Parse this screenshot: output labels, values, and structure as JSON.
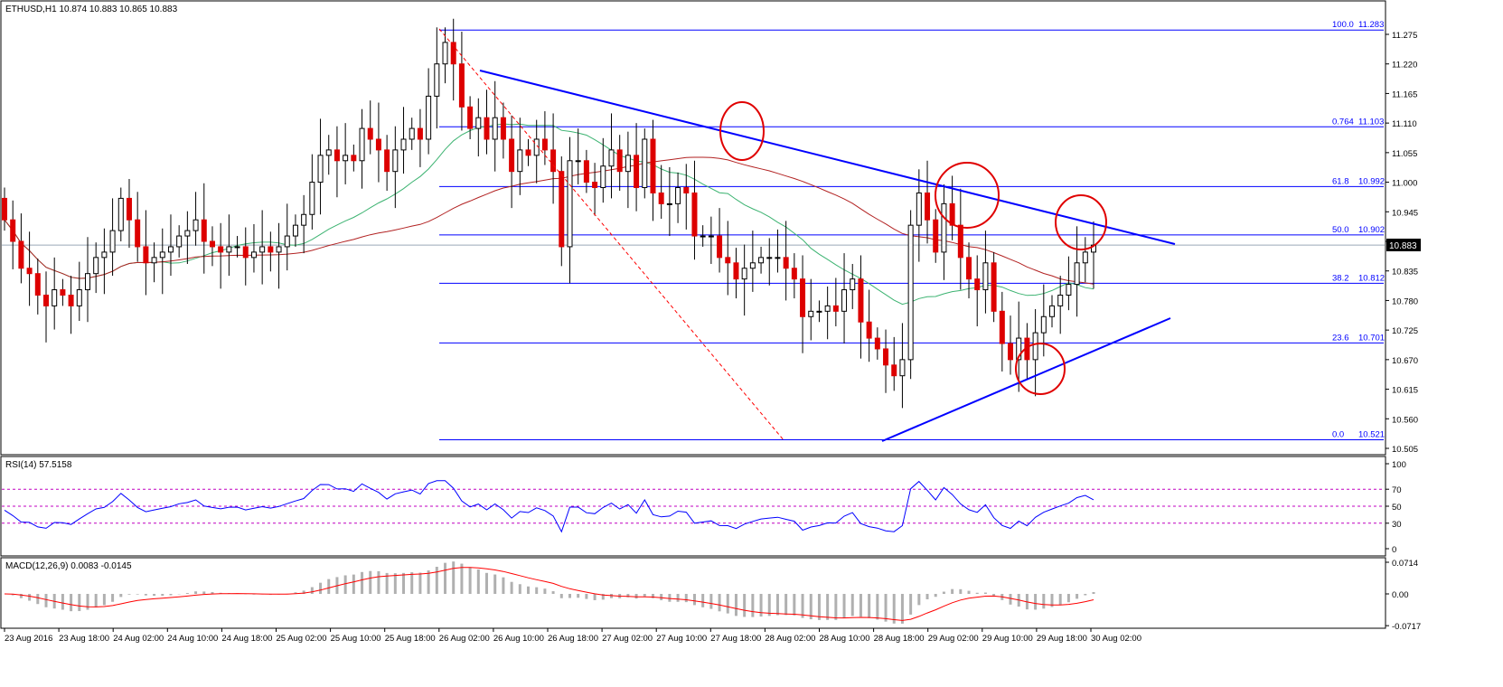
{
  "header": {
    "main_title": "ETHUSD,H1  10.874 10.883 10.865 10.883",
    "rsi_title": "RSI(14) 57.5158",
    "macd_title": "MACD(12,26,9) 0.0083 -0.0145",
    "current_price": "10.883"
  },
  "colors": {
    "bull": "#ffffff",
    "bear": "#dd0000",
    "wick": "#000000",
    "fib": "#0000ff",
    "trend": "#0000ff",
    "sma_green": "#3cb371",
    "sma_red": "#b22222",
    "diagonal": "#ff0000",
    "circle": "#e00000",
    "rsi_line": "#0000ff",
    "rsi_levels": "#c000c0",
    "macd_hist": "#b0b0b0",
    "macd_signal": "#ff0000"
  },
  "chart_data": [
    {
      "type": "candlestick",
      "title": "ETHUSD,H1",
      "ylim": [
        10.5,
        11.31
      ],
      "y_ticks": [
        "11.275",
        "11.220",
        "11.165",
        "11.110",
        "11.055",
        "11.000",
        "10.945",
        "10.890",
        "10.835",
        "10.780",
        "10.725",
        "10.670",
        "10.615",
        "10.560",
        "10.505"
      ],
      "x_labels": [
        "23 Aug 2016",
        "23 Aug 18:00",
        "24 Aug 02:00",
        "24 Aug 10:00",
        "24 Aug 18:00",
        "25 Aug 02:00",
        "25 Aug 10:00",
        "25 Aug 18:00",
        "26 Aug 02:00",
        "26 Aug 10:00",
        "26 Aug 18:00",
        "27 Aug 02:00",
        "27 Aug 10:00",
        "27 Aug 18:00",
        "28 Aug 02:00",
        "28 Aug 10:00",
        "28 Aug 18:00",
        "29 Aug 02:00",
        "29 Aug 10:00",
        "29 Aug 18:00",
        "30 Aug 02:00"
      ],
      "fib_levels": [
        {
          "label": "100.0",
          "value": 11.283,
          "text": "11.283"
        },
        {
          "label": "0.764",
          "value": 11.103,
          "text": "11.103"
        },
        {
          "label": "61.8",
          "value": 10.992,
          "text": "10.992"
        },
        {
          "label": "50.0",
          "value": 10.902,
          "text": "10.902"
        },
        {
          "label": "38.2",
          "value": 10.812,
          "text": "10.812"
        },
        {
          "label": "23.6",
          "value": 10.701,
          "text": "10.701"
        },
        {
          "label": "0.0",
          "value": 10.521,
          "text": "10.521"
        }
      ],
      "current_price": 10.883,
      "closes": [
        10.93,
        10.89,
        10.84,
        10.83,
        10.79,
        10.77,
        10.8,
        10.79,
        10.77,
        10.8,
        10.83,
        10.86,
        10.87,
        10.91,
        10.97,
        10.93,
        10.88,
        10.85,
        10.86,
        10.87,
        10.88,
        10.9,
        10.91,
        10.93,
        10.89,
        10.88,
        10.87,
        10.88,
        10.88,
        10.86,
        10.87,
        10.88,
        10.87,
        10.88,
        10.9,
        10.92,
        10.94,
        11.0,
        11.05,
        11.06,
        11.04,
        11.05,
        11.04,
        11.1,
        11.08,
        11.06,
        11.02,
        11.06,
        11.08,
        11.1,
        11.08,
        11.16,
        11.22,
        11.26,
        11.22,
        11.14,
        11.1,
        11.12,
        11.08,
        11.12,
        11.08,
        11.02,
        11.06,
        11.05,
        11.08,
        11.06,
        11.02,
        10.88,
        11.04,
        11.04,
        11.0,
        10.99,
        11.03,
        11.06,
        11.02,
        11.05,
        10.99,
        11.08,
        10.98,
        10.96,
        10.96,
        10.99,
        10.98,
        10.9,
        10.9,
        10.9,
        10.86,
        10.85,
        10.82,
        10.84,
        10.85,
        10.86,
        10.86,
        10.86,
        10.84,
        10.82,
        10.75,
        10.76,
        10.76,
        10.77,
        10.76,
        10.8,
        10.82,
        10.74,
        10.71,
        10.69,
        10.66,
        10.64,
        10.67,
        10.92,
        10.98,
        10.93,
        10.87,
        10.96,
        10.92,
        10.86,
        10.82,
        10.8,
        10.85,
        10.76,
        10.7,
        10.67,
        10.71,
        10.67,
        10.72,
        10.75,
        10.77,
        10.79,
        10.81,
        10.85,
        10.87,
        10.883
      ],
      "rsi": {
        "title": "RSI(14)",
        "value": 57.5158,
        "levels": [
          70,
          50,
          30
        ],
        "ticks": [
          "100",
          "70",
          "50",
          "30",
          "0"
        ]
      },
      "macd": {
        "title": "MACD(12,26,9)",
        "main": 0.0083,
        "signal": -0.0145,
        "ticks": [
          "0.0714",
          "0.00",
          "-0.0717"
        ]
      }
    }
  ]
}
